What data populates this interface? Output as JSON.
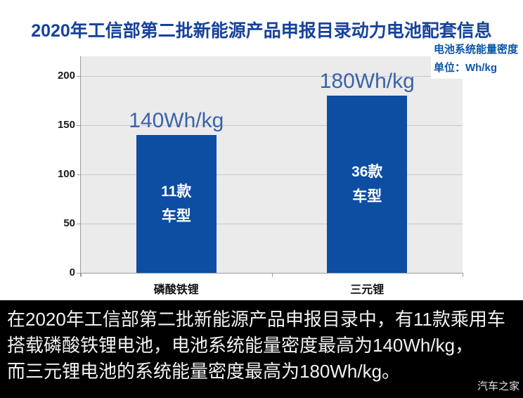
{
  "title": "2020年工信部第二批新能源产品申报目录动力电池配套信息",
  "unit_label": {
    "line1": "电池系统能量密度",
    "line2": "单位：Wh/kg"
  },
  "chart_data": {
    "type": "bar",
    "categories": [
      "磷酸铁锂",
      "三元锂"
    ],
    "values": [
      140,
      180
    ],
    "value_labels": [
      "140Wh/kg",
      "180Wh/kg"
    ],
    "bar_annotations": [
      [
        "11款",
        "车型"
      ],
      [
        "36款",
        "车型"
      ]
    ],
    "title": "2020年工信部第二批新能源产品申报目录动力电池配套信息",
    "xlabel": "",
    "ylabel": "Wh/kg",
    "yticks": [
      0,
      50,
      100,
      150,
      200
    ],
    "ylim": [
      0,
      220
    ],
    "grid": true,
    "legend_position": "none"
  },
  "caption": {
    "lines": [
      "在2020年工信部第二批新能源产品申报目录中，有11款乘用车",
      "搭载磷酸铁锂电池，电池系统能量密度最高为140Wh/kg，",
      "而三元锂电池的系统能量密度最高为180Wh/kg。"
    ]
  },
  "watermark": "汽车之家",
  "colors": {
    "title": "#16429c",
    "unit_label": "#0b55a6",
    "bar": "#0d4da2",
    "value_label": "#3b63a9",
    "plot_bg": "#ebebeb",
    "gridline": "#c9c9c9",
    "axis": "#9b9b9b",
    "tick_label": "#1a1a1a",
    "caption_bg": "#000000",
    "caption_text": "#f2f2f2"
  }
}
